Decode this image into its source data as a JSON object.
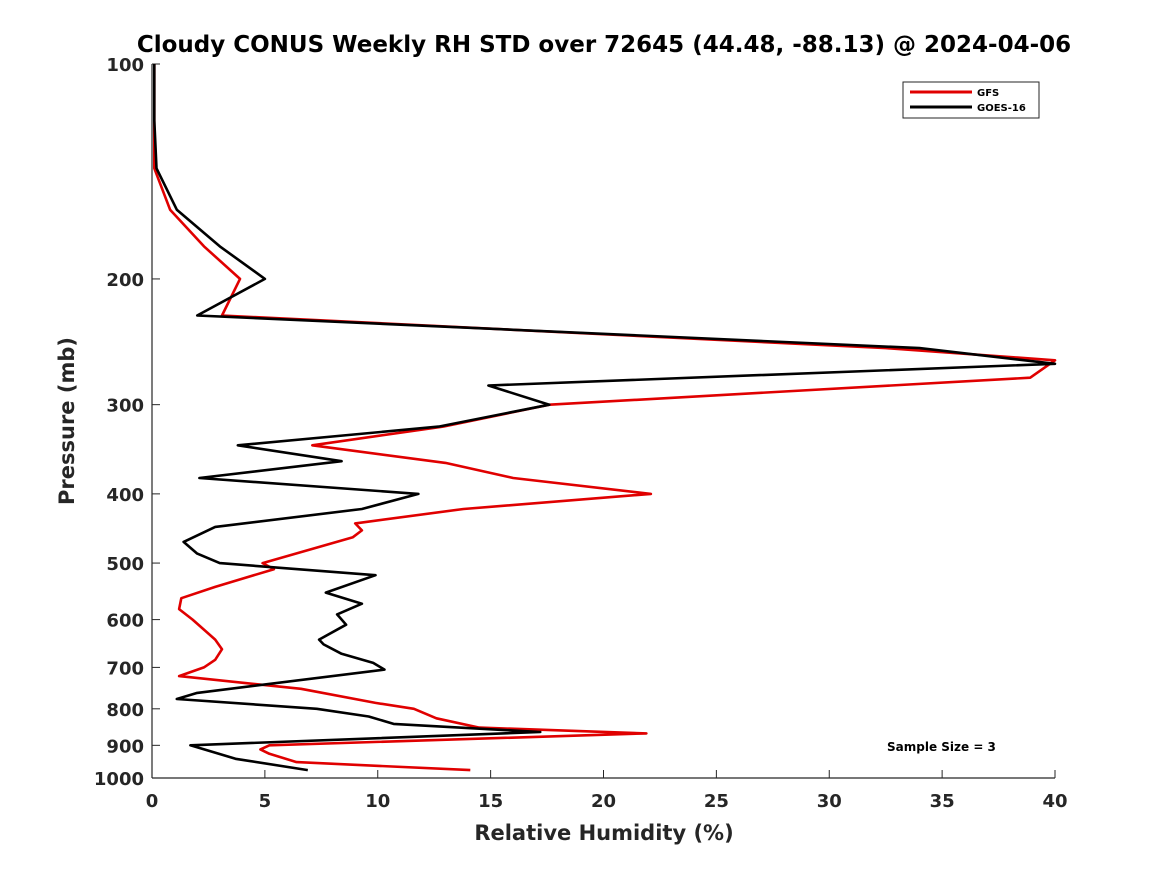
{
  "chart_data": {
    "type": "line",
    "title": "Cloudy CONUS Weekly RH STD over 72645 (44.48, -88.13) @ 2024-04-06",
    "xlabel": "Relative Humidity (%)",
    "ylabel": "Pressure (mb)",
    "xlim": [
      0,
      40
    ],
    "ylim": [
      100,
      1000
    ],
    "yscale": "log",
    "yreversed": true,
    "xticks": [
      "0",
      "5",
      "10",
      "15",
      "20",
      "25",
      "30",
      "35",
      "40"
    ],
    "yticks": [
      "100",
      "200",
      "300",
      "400",
      "500",
      "600",
      "700",
      "800",
      "900",
      "1000"
    ],
    "legend_position": "top-right",
    "annotation": "Sample Size = 3",
    "grid": false,
    "series": [
      {
        "name": "GFS",
        "color": "#e00000",
        "points": [
          [
            14.1,
            975
          ],
          [
            6.4,
            950
          ],
          [
            5.2,
            925
          ],
          [
            4.8,
            912
          ],
          [
            5.2,
            900
          ],
          [
            21.9,
            866
          ],
          [
            14.5,
            850
          ],
          [
            12.6,
            825
          ],
          [
            11.6,
            800
          ],
          [
            9.9,
            785
          ],
          [
            6.6,
            750
          ],
          [
            1.2,
            720
          ],
          [
            2.3,
            700
          ],
          [
            2.8,
            683
          ],
          [
            3.1,
            660
          ],
          [
            2.8,
            640
          ],
          [
            1.8,
            600
          ],
          [
            1.2,
            580
          ],
          [
            1.3,
            560
          ],
          [
            2.8,
            540
          ],
          [
            5.4,
            510
          ],
          [
            4.9,
            500
          ],
          [
            8.9,
            460
          ],
          [
            9.3,
            450
          ],
          [
            9.0,
            440
          ],
          [
            13.8,
            420
          ],
          [
            22.1,
            400
          ],
          [
            16.0,
            380
          ],
          [
            13.0,
            362
          ],
          [
            7.1,
            342
          ],
          [
            12.9,
            322
          ],
          [
            17.6,
            300
          ],
          [
            38.9,
            275
          ],
          [
            40,
            260
          ],
          [
            32.5,
            250
          ],
          [
            3.1,
            225
          ],
          [
            3.9,
            200
          ],
          [
            2.3,
            180
          ],
          [
            0.8,
            160
          ],
          [
            0.1,
            140
          ],
          [
            0.1,
            100
          ]
        ]
      },
      {
        "name": "GOES-16",
        "color": "#000000",
        "points": [
          [
            6.9,
            975
          ],
          [
            3.7,
            940
          ],
          [
            1.7,
            900
          ],
          [
            17.2,
            862
          ],
          [
            10.7,
            840
          ],
          [
            9.6,
            820
          ],
          [
            7.3,
            800
          ],
          [
            1.1,
            775
          ],
          [
            2.0,
            760
          ],
          [
            10.3,
            705
          ],
          [
            9.8,
            690
          ],
          [
            8.4,
            670
          ],
          [
            7.6,
            650
          ],
          [
            7.4,
            640
          ],
          [
            8.6,
            610
          ],
          [
            8.2,
            590
          ],
          [
            9.3,
            570
          ],
          [
            7.7,
            550
          ],
          [
            9.9,
            520
          ],
          [
            3.0,
            500
          ],
          [
            2.0,
            485
          ],
          [
            1.4,
            467
          ],
          [
            2.8,
            445
          ],
          [
            9.3,
            420
          ],
          [
            11.8,
            400
          ],
          [
            2.1,
            380
          ],
          [
            8.4,
            360
          ],
          [
            3.8,
            342
          ],
          [
            12.7,
            322
          ],
          [
            17.6,
            300
          ],
          [
            14.9,
            282
          ],
          [
            40,
            263
          ],
          [
            34.0,
            250
          ],
          [
            2.0,
            225
          ],
          [
            5.0,
            200
          ],
          [
            3.0,
            180
          ],
          [
            1.1,
            160
          ],
          [
            0.2,
            140
          ],
          [
            0.1,
            120
          ],
          [
            0.1,
            100
          ]
        ]
      }
    ]
  }
}
